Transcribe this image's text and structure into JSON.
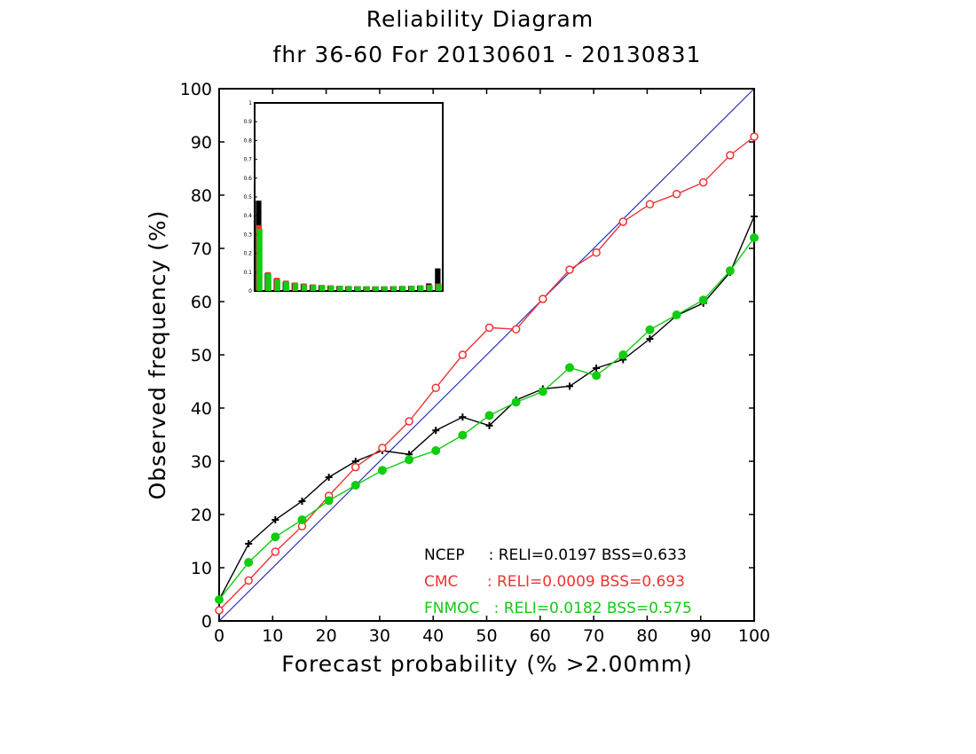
{
  "chart_data": {
    "type": "line",
    "title": "Reliability Diagram",
    "subtitle": "fhr 36-60 For 20130601 - 20130831",
    "xlabel": "Forecast probability (% >2.00mm)",
    "ylabel": "Observed frequency (%)",
    "xlim": [
      0,
      100
    ],
    "ylim": [
      0,
      100
    ],
    "x_ticks": [
      "0",
      "10",
      "20",
      "30",
      "40",
      "50",
      "60",
      "70",
      "80",
      "90",
      "100"
    ],
    "y_ticks": [
      "0",
      "10",
      "20",
      "30",
      "40",
      "50",
      "60",
      "70",
      "80",
      "90",
      "100"
    ],
    "diagonal_color": "#2233bb",
    "series": [
      {
        "name": "NCEP",
        "color": "#000000",
        "marker": "plus",
        "legend": "NCEP     : RELI=0.0197 BSS=0.633",
        "x": [
          0,
          5.5,
          10.5,
          15.5,
          20.5,
          25.5,
          30.5,
          35.5,
          40.5,
          45.5,
          50.5,
          55.5,
          60.5,
          65.5,
          70.5,
          75.5,
          80.5,
          85.5,
          90.5,
          95.5,
          100
        ],
        "y": [
          4,
          14.5,
          19,
          22.5,
          27,
          30,
          32,
          31.3,
          35.8,
          38.3,
          36.7,
          41.5,
          43.6,
          44.1,
          47.5,
          49.1,
          53,
          57.4,
          59.7,
          65.5,
          76
        ]
      },
      {
        "name": "CMC",
        "color": "#ee3333",
        "marker": "open-circle",
        "legend": "CMC      : RELI=0.0009 BSS=0.693",
        "x": [
          0,
          5.5,
          10.5,
          15.5,
          20.5,
          25.5,
          30.5,
          35.5,
          40.5,
          45.5,
          50.5,
          55.5,
          60.5,
          65.5,
          70.5,
          75.5,
          80.5,
          85.5,
          90.5,
          95.5,
          100
        ],
        "y": [
          2,
          7.6,
          13,
          17.8,
          23.5,
          28.9,
          32.5,
          37.5,
          43.8,
          50,
          55.1,
          54.8,
          60.5,
          66,
          69.2,
          75,
          78.3,
          80.2,
          82.4,
          87.5,
          91
        ]
      },
      {
        "name": "FNMOC",
        "color": "#11cc11",
        "marker": "filled-circle",
        "legend": "FNMOC   : RELI=0.0182 BSS=0.575",
        "x": [
          0,
          5.5,
          10.5,
          15.5,
          20.5,
          25.5,
          30.5,
          35.5,
          40.5,
          45.5,
          50.5,
          55.5,
          60.5,
          65.5,
          70.5,
          75.5,
          80.5,
          85.5,
          90.5,
          95.5,
          100
        ],
        "y": [
          4,
          11,
          15.8,
          19,
          22.6,
          25.5,
          28.3,
          30.3,
          32,
          34.9,
          38.6,
          41.1,
          43.1,
          47.6,
          46.1,
          50,
          54.7,
          57.5,
          60.3,
          65.8,
          72
        ]
      }
    ],
    "inset": {
      "type": "bar",
      "ylim": [
        0,
        1
      ],
      "y_ticks": [
        "0",
        "0.1",
        "0.2",
        "0.3",
        "0.4",
        "0.5",
        "0.6",
        "0.7",
        "0.8",
        "0.9",
        "1"
      ],
      "series": [
        {
          "name": "NCEP",
          "color": "#000000",
          "values": [
            0.48,
            0.095,
            0.065,
            0.05,
            0.042,
            0.037,
            0.033,
            0.03,
            0.028,
            0.026,
            0.025,
            0.024,
            0.023,
            0.023,
            0.023,
            0.024,
            0.025,
            0.026,
            0.028,
            0.04,
            0.12
          ]
        },
        {
          "name": "CMC",
          "color": "#ee3333",
          "values": [
            0.35,
            0.1,
            0.07,
            0.055,
            0.045,
            0.04,
            0.035,
            0.032,
            0.03,
            0.028,
            0.027,
            0.026,
            0.025,
            0.025,
            0.025,
            0.026,
            0.027,
            0.028,
            0.03,
            0.034,
            0.04
          ]
        },
        {
          "name": "FNMOC",
          "color": "#11cc11",
          "values": [
            0.33,
            0.09,
            0.06,
            0.048,
            0.04,
            0.035,
            0.032,
            0.03,
            0.028,
            0.027,
            0.026,
            0.025,
            0.025,
            0.024,
            0.024,
            0.025,
            0.026,
            0.027,
            0.028,
            0.03,
            0.035
          ]
        }
      ]
    }
  }
}
